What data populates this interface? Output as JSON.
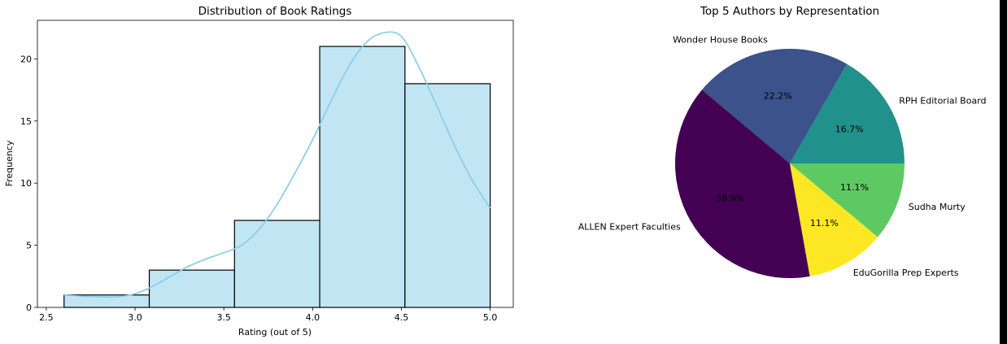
{
  "chart_data": [
    {
      "type": "bar",
      "subtype": "histogram_with_kde",
      "title": "Distribution of Book Ratings",
      "xlabel": "Rating (out of 5)",
      "ylabel": "Frequency",
      "xlim": [
        2.45,
        5.13
      ],
      "ylim": [
        0,
        23.1
      ],
      "xticks": [
        2.5,
        3.0,
        3.5,
        4.0,
        4.5,
        5.0
      ],
      "xtick_labels": [
        "2.5",
        "3.0",
        "3.5",
        "4.0",
        "4.5",
        "5.0"
      ],
      "yticks": [
        0,
        5,
        10,
        15,
        20
      ],
      "ytick_labels": [
        "0",
        "5",
        "10",
        "15",
        "20"
      ],
      "bins": [
        {
          "x0": 2.6,
          "x1": 3.08,
          "value": 1
        },
        {
          "x0": 3.08,
          "x1": 3.56,
          "value": 3
        },
        {
          "x0": 3.56,
          "x1": 4.04,
          "value": 7
        },
        {
          "x0": 4.04,
          "x1": 4.52,
          "value": 21
        },
        {
          "x0": 4.52,
          "x1": 5.0,
          "value": 18
        }
      ],
      "kde": {
        "x": [
          2.6,
          2.7,
          2.8,
          2.9,
          3.0,
          3.1,
          3.2,
          3.3,
          3.4,
          3.5,
          3.6,
          3.7,
          3.8,
          3.9,
          4.0,
          4.1,
          4.2,
          4.3,
          4.4,
          4.5,
          4.6,
          4.7,
          4.8,
          4.9,
          5.0
        ],
        "y": [
          1.0,
          0.9,
          0.85,
          0.85,
          1.1,
          1.7,
          2.5,
          3.3,
          3.9,
          4.4,
          5.0,
          6.3,
          8.3,
          10.8,
          13.5,
          16.5,
          19.3,
          21.3,
          22.1,
          21.8,
          19.3,
          16.2,
          13.0,
          10.2,
          8.0
        ]
      },
      "colors": {
        "bar_fill": "#c2e5f4",
        "bar_edge": "#000000",
        "kde_line": "#87ceeb"
      }
    },
    {
      "type": "pie",
      "title": "Top 5 Authors by Representation",
      "labels": [
        "RPH Editorial Board",
        "Wonder House Books",
        "ALLEN Expert Faculties",
        "EduGorilla Prep Experts",
        "Sudha Murty"
      ],
      "values": [
        16.7,
        22.2,
        38.9,
        11.1,
        11.1
      ],
      "pct_labels": [
        "16.7%",
        "22.2%",
        "38.9%",
        "11.1%",
        "11.1%"
      ],
      "colors": [
        "#21918c",
        "#3b528b",
        "#440154",
        "#fde725",
        "#5ec962"
      ],
      "start_angle_deg": 0,
      "direction": "counterclockwise"
    }
  ]
}
